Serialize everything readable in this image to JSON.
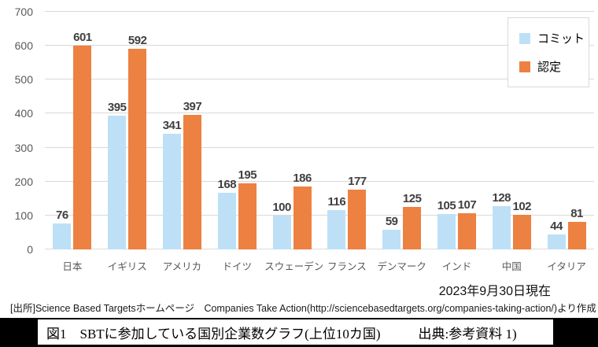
{
  "chart_data": {
    "type": "bar",
    "title": "",
    "xlabel": "",
    "ylabel": "",
    "categories": [
      "日本",
      "イギリス",
      "アメリカ",
      "ドイツ",
      "スウェーデン",
      "フランス",
      "デンマーク",
      "インド",
      "中国",
      "イタリア"
    ],
    "series": [
      {
        "name": "コミット",
        "color": "#BDE0F7",
        "values": [
          76,
          395,
          341,
          168,
          100,
          116,
          59,
          105,
          128,
          44
        ]
      },
      {
        "name": "認定",
        "color": "#EC8142",
        "values": [
          601,
          592,
          397,
          195,
          186,
          177,
          125,
          107,
          102,
          81
        ]
      }
    ],
    "ylim": [
      0,
      700
    ],
    "ytick_interval": 100,
    "grid": true,
    "legend_position": "top-right"
  },
  "footer": {
    "date_note": "2023年9月30日現在",
    "source_line": "[出所]Science Based Targetsホームページ　Companies Take Action(http://sciencebasedtargets.org/companies-taking-action/)より作成"
  },
  "caption": {
    "title": "図1　SBTに参加している国別企業数グラフ(上位10カ国)",
    "source": "出典:参考資料 1)"
  }
}
